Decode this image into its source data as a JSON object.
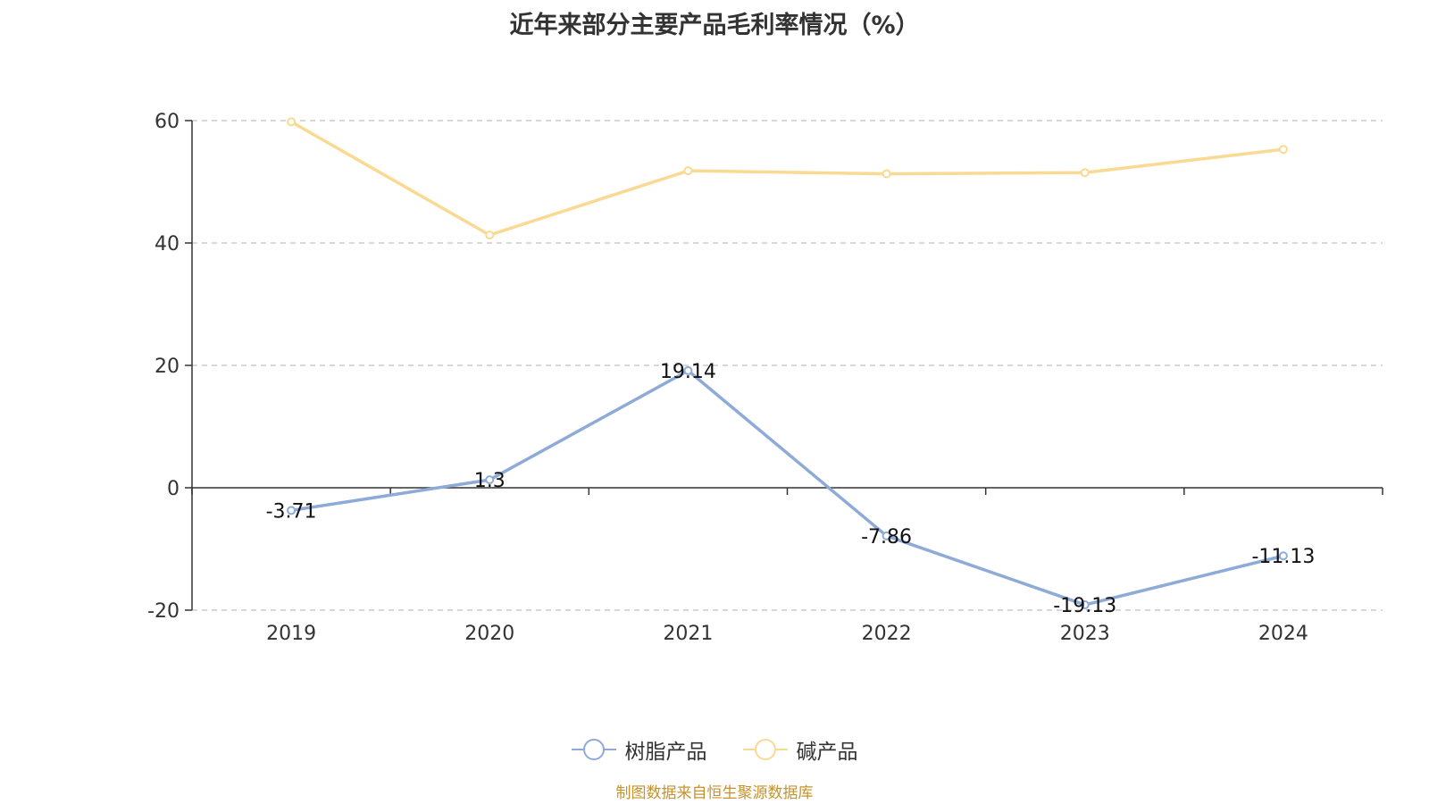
{
  "chart_data": {
    "type": "line",
    "title": "近年来部分主要产品毛利率情况（%）",
    "categories": [
      "2019",
      "2020",
      "2021",
      "2022",
      "2023",
      "2024"
    ],
    "series": [
      {
        "name": "树脂产品",
        "values": [
          -3.71,
          1.3,
          19.14,
          -7.86,
          -19.13,
          -11.13
        ],
        "labels": [
          "-3.71",
          "1.3",
          "19.14",
          "-7.86",
          "-19.13",
          "-11.13"
        ],
        "color": "#8eabd8",
        "show_labels": true
      },
      {
        "name": "碱产品",
        "values": [
          59.8,
          41.3,
          51.8,
          51.3,
          51.5,
          55.3
        ],
        "color": "#fad993",
        "show_labels": false
      }
    ],
    "yticks": [
      -20,
      0,
      20,
      40,
      60
    ],
    "ylim": [
      -20,
      60
    ],
    "grid": true,
    "legend_position": "bottom-center",
    "xlabel": "",
    "ylabel": ""
  },
  "source_note": "制图数据来自恒生聚源数据库"
}
